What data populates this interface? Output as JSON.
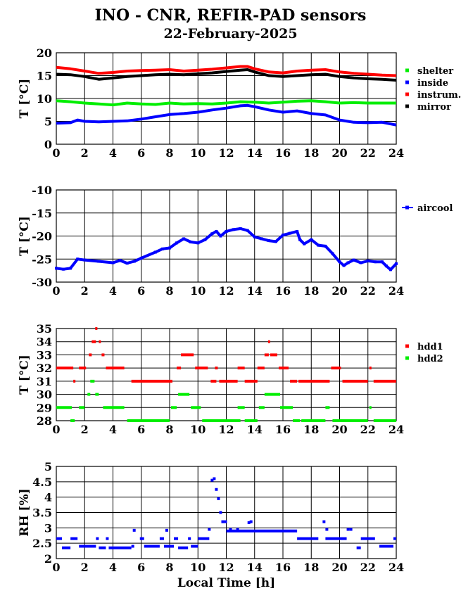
{
  "title": "INO - CNR, REFIR-PAD sensors",
  "subtitle": "22-February-2025",
  "xlabel": "Local Time [h]",
  "colors": {
    "shelter": "#00ee00",
    "inside": "#0000ff",
    "instrum": "#ff0000",
    "mirror": "#000000",
    "aircool": "#0000ff",
    "hdd1": "#ff0000",
    "hdd2": "#00ee00",
    "rh": "#0000ff"
  },
  "chart_data": [
    {
      "type": "line",
      "ylabel": "T [°C]",
      "xlim": [
        0,
        24
      ],
      "ylim": [
        0,
        20
      ],
      "xticks": [
        0,
        2,
        4,
        6,
        8,
        10,
        12,
        14,
        16,
        18,
        20,
        22,
        24
      ],
      "yticks": [
        0,
        5,
        10,
        15,
        20
      ],
      "grid": true,
      "legend": "right",
      "series": [
        {
          "name": "shelter",
          "x": [
            0,
            1,
            2,
            3,
            4,
            5,
            6,
            7,
            8,
            9,
            10,
            11,
            12,
            13,
            14,
            15,
            16,
            17,
            18,
            19,
            20,
            21,
            22,
            23,
            24
          ],
          "y": [
            9.5,
            9.3,
            9.0,
            8.8,
            8.6,
            9.0,
            8.8,
            8.7,
            9.0,
            8.8,
            8.9,
            8.8,
            9.0,
            9.3,
            9.2,
            9.0,
            9.2,
            9.4,
            9.5,
            9.3,
            9.0,
            9.1,
            9.0,
            9.0,
            9.0
          ]
        },
        {
          "name": "inside",
          "x": [
            0,
            1,
            1.5,
            2,
            3,
            4,
            5,
            6,
            7,
            8,
            9,
            10,
            11,
            12,
            13,
            13.5,
            14,
            15,
            16,
            17,
            18,
            19,
            20,
            21,
            22,
            23,
            24
          ],
          "y": [
            4.6,
            4.7,
            5.3,
            5.0,
            4.9,
            5.0,
            5.1,
            5.5,
            6.0,
            6.5,
            6.7,
            7.0,
            7.5,
            7.9,
            8.4,
            8.5,
            8.2,
            7.5,
            7.0,
            7.3,
            6.7,
            6.4,
            5.3,
            4.8,
            4.7,
            4.8,
            4.2
          ]
        },
        {
          "name": "instrum.",
          "x": [
            0,
            1,
            2,
            3,
            4,
            5,
            6,
            7,
            8,
            9,
            10,
            11,
            12,
            13,
            13.5,
            14,
            15,
            16,
            17,
            18,
            19,
            20,
            21,
            22,
            23,
            24
          ],
          "y": [
            16.8,
            16.5,
            16.0,
            15.5,
            15.7,
            16.0,
            16.1,
            16.2,
            16.3,
            16.0,
            16.2,
            16.4,
            16.7,
            17.0,
            17.0,
            16.5,
            15.8,
            15.6,
            16.0,
            16.2,
            16.3,
            15.8,
            15.5,
            15.3,
            15.1,
            15.0
          ]
        },
        {
          "name": "mirror",
          "x": [
            0,
            1,
            2,
            3,
            4,
            5,
            6,
            7,
            8,
            9,
            10,
            11,
            12,
            13,
            13.5,
            14,
            15,
            16,
            17,
            18,
            19,
            20,
            21,
            22,
            23,
            24
          ],
          "y": [
            15.3,
            15.2,
            14.8,
            14.2,
            14.5,
            14.8,
            15.0,
            15.2,
            15.3,
            15.2,
            15.4,
            15.6,
            15.9,
            16.2,
            16.3,
            15.8,
            15.0,
            14.8,
            15.0,
            15.2,
            15.3,
            14.8,
            14.5,
            14.3,
            14.2,
            14.0
          ]
        }
      ]
    },
    {
      "type": "line",
      "ylabel": "T [°C]",
      "xlim": [
        0,
        24
      ],
      "ylim": [
        -30,
        -10
      ],
      "xticks": [
        0,
        2,
        4,
        6,
        8,
        10,
        12,
        14,
        16,
        18,
        20,
        22,
        24
      ],
      "yticks": [
        -30,
        -25,
        -20,
        -15,
        -10
      ],
      "grid": true,
      "legend": "right",
      "series": [
        {
          "name": "aircool",
          "x": [
            0,
            0.5,
            1,
            1.5,
            2,
            3,
            4,
            4.5,
            5,
            5.5,
            6,
            7,
            7.5,
            8,
            8.5,
            9,
            9.5,
            10,
            10.5,
            11,
            11.3,
            11.6,
            12,
            12.5,
            13,
            13.5,
            14,
            14.5,
            15,
            15.5,
            16,
            16.5,
            17,
            17.2,
            17.5,
            18,
            18.5,
            19,
            19.5,
            20,
            20.3,
            20.6,
            21,
            21.5,
            22,
            22.5,
            23,
            23.3,
            23.6,
            24
          ],
          "y": [
            -27.0,
            -27.2,
            -27.0,
            -25.0,
            -25.2,
            -25.5,
            -25.8,
            -25.3,
            -25.9,
            -25.5,
            -24.8,
            -23.5,
            -22.8,
            -22.6,
            -21.5,
            -20.6,
            -21.3,
            -21.5,
            -20.8,
            -19.5,
            -19.0,
            -20.0,
            -19.0,
            -18.6,
            -18.4,
            -18.8,
            -20.2,
            -20.6,
            -21.0,
            -21.2,
            -19.8,
            -19.4,
            -19.0,
            -20.8,
            -21.7,
            -20.8,
            -22.0,
            -22.2,
            -23.8,
            -25.6,
            -26.4,
            -25.8,
            -25.2,
            -25.8,
            -25.4,
            -25.6,
            -25.6,
            -26.5,
            -27.3,
            -26.0
          ]
        }
      ]
    },
    {
      "type": "scatter",
      "ylabel": "T [°C]",
      "xlim": [
        0,
        24
      ],
      "ylim": [
        28,
        35
      ],
      "xticks": [
        0,
        2,
        4,
        6,
        8,
        10,
        12,
        14,
        16,
        18,
        20,
        22,
        24
      ],
      "yticks": [
        28,
        29,
        30,
        31,
        32,
        33,
        34,
        35
      ],
      "grid": true,
      "legend": "right",
      "series": [
        {
          "name": "hdd1",
          "segments": [
            [
              0,
              1.2,
              32
            ],
            [
              1.2,
              1.35,
              31
            ],
            [
              1.6,
              2.1,
              32
            ],
            [
              2.3,
              2.5,
              33
            ],
            [
              2.5,
              2.8,
              34
            ],
            [
              2.75,
              2.8,
              35
            ],
            [
              3.0,
              3.1,
              34
            ],
            [
              3.2,
              3.4,
              33
            ],
            [
              3.5,
              4.8,
              32
            ],
            [
              5.3,
              8.2,
              31
            ],
            [
              8.5,
              8.8,
              32
            ],
            [
              8.8,
              9.7,
              33
            ],
            [
              9.8,
              10.7,
              32
            ],
            [
              10.9,
              11.3,
              31
            ],
            [
              11.2,
              11.4,
              32
            ],
            [
              11.5,
              12.8,
              31
            ],
            [
              12.8,
              13.3,
              32
            ],
            [
              13.3,
              14.2,
              31
            ],
            [
              14.2,
              14.7,
              32
            ],
            [
              14.7,
              15.0,
              33
            ],
            [
              14.95,
              15.05,
              34
            ],
            [
              15.1,
              15.6,
              33
            ],
            [
              15.7,
              16.4,
              32
            ],
            [
              16.5,
              17.0,
              31
            ],
            [
              17.1,
              19.3,
              31
            ],
            [
              19.4,
              20.1,
              32
            ],
            [
              20.2,
              22.0,
              31
            ],
            [
              22.1,
              22.25,
              32
            ],
            [
              22.4,
              24,
              31
            ]
          ]
        },
        {
          "name": "hdd2",
          "segments": [
            [
              0,
              1.1,
              29
            ],
            [
              1.0,
              1.3,
              28
            ],
            [
              1.6,
              2.0,
              29
            ],
            [
              2.2,
              2.4,
              30
            ],
            [
              2.4,
              2.7,
              31
            ],
            [
              2.75,
              3.0,
              30
            ],
            [
              3.3,
              4.8,
              29
            ],
            [
              5.0,
              8.0,
              28
            ],
            [
              8.1,
              8.5,
              29
            ],
            [
              8.6,
              9.4,
              30
            ],
            [
              9.5,
              10.2,
              29
            ],
            [
              10.3,
              13.0,
              28
            ],
            [
              12.8,
              13.3,
              29
            ],
            [
              13.3,
              14.2,
              28
            ],
            [
              14.3,
              14.7,
              29
            ],
            [
              14.7,
              15.8,
              30
            ],
            [
              15.8,
              16.7,
              29
            ],
            [
              16.7,
              17.2,
              28
            ],
            [
              17.3,
              19.0,
              28
            ],
            [
              19.0,
              19.3,
              29
            ],
            [
              19.5,
              22.0,
              28
            ],
            [
              22.1,
              22.25,
              29
            ],
            [
              22.4,
              24,
              28
            ]
          ]
        }
      ]
    },
    {
      "type": "scatter",
      "ylabel": "RH [%]",
      "xlim": [
        0,
        24
      ],
      "ylim": [
        2,
        5
      ],
      "xticks": [
        0,
        2,
        4,
        6,
        8,
        10,
        12,
        14,
        16,
        18,
        20,
        22,
        24
      ],
      "yticks": [
        2,
        2.5,
        3,
        3.5,
        4,
        4.5,
        5
      ],
      "grid": true,
      "series": [
        {
          "name": "RH",
          "segments": [
            [
              0,
              0.4,
              2.65
            ],
            [
              0.4,
              1.0,
              2.35
            ],
            [
              1.0,
              1.5,
              2.65
            ],
            [
              1.6,
              2.8,
              2.4
            ],
            [
              2.8,
              3.0,
              2.65
            ],
            [
              3.0,
              3.5,
              2.35
            ],
            [
              3.5,
              3.7,
              2.65
            ],
            [
              3.7,
              5.3,
              2.35
            ],
            [
              5.3,
              5.5,
              2.4
            ],
            [
              5.9,
              6.2,
              2.65
            ],
            [
              6.2,
              7.3,
              2.4
            ],
            [
              7.3,
              7.6,
              2.65
            ],
            [
              7.6,
              8.3,
              2.4
            ],
            [
              8.3,
              8.6,
              2.65
            ],
            [
              8.6,
              9.3,
              2.35
            ],
            [
              9.3,
              9.5,
              2.65
            ],
            [
              9.5,
              10.0,
              2.4
            ],
            [
              10.0,
              10.8,
              2.65
            ],
            [
              12.0,
              17.0,
              2.9
            ],
            [
              17.0,
              18.5,
              2.65
            ],
            [
              19.0,
              20.5,
              2.65
            ],
            [
              21.2,
              21.5,
              2.35
            ],
            [
              21.5,
              22.5,
              2.65
            ],
            [
              22.8,
              23.8,
              2.4
            ],
            [
              23.8,
              24,
              2.65
            ]
          ],
          "points": [
            [
              5.5,
              2.92
            ],
            [
              7.8,
              2.92
            ],
            [
              10.8,
              2.95
            ],
            [
              11.0,
              4.55
            ],
            [
              11.15,
              4.6
            ],
            [
              11.3,
              4.25
            ],
            [
              11.45,
              3.95
            ],
            [
              11.6,
              3.5
            ],
            [
              11.75,
              3.2
            ],
            [
              11.95,
              3.2
            ],
            [
              12.3,
              2.95
            ],
            [
              12.8,
              2.95
            ],
            [
              13.6,
              3.17
            ],
            [
              13.75,
              3.2
            ],
            [
              18.9,
              3.2
            ],
            [
              19.1,
              2.95
            ],
            [
              20.6,
              2.95
            ],
            [
              20.8,
              2.95
            ]
          ]
        }
      ]
    }
  ]
}
